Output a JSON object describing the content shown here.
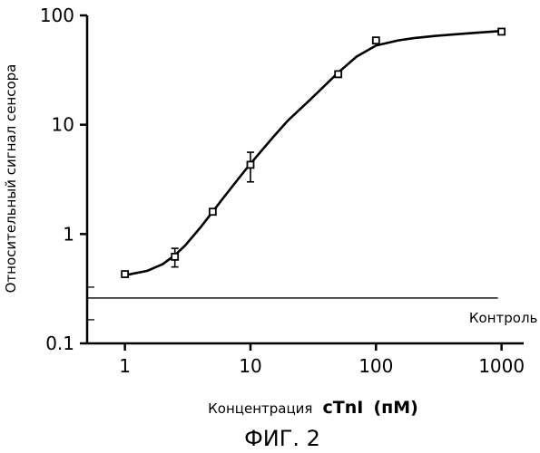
{
  "chart_data": {
    "type": "scatter",
    "title": "",
    "xlabel_prefix": "Концентрация",
    "xlabel_analyte": "cTnI",
    "xlabel_unit": "(пM)",
    "ylabel": "Относительный сигнал сенсора",
    "caption": "ФИГ. 2",
    "x_scale": "log",
    "y_scale": "log",
    "xlim": [
      0.5,
      1500
    ],
    "ylim": [
      0.1,
      100
    ],
    "x_ticks": [
      1,
      10,
      100,
      1000
    ],
    "x_tick_labels": [
      "1",
      "10",
      "100",
      "1000"
    ],
    "y_ticks": [
      0.1,
      1,
      10,
      100
    ],
    "y_tick_labels": [
      "0.1",
      "1",
      "10",
      "100"
    ],
    "grid": false,
    "series": [
      {
        "marker": "square",
        "points": [
          {
            "x": 1,
            "y": 0.43,
            "err_low": 0.41,
            "err_high": 0.45
          },
          {
            "x": 2.5,
            "y": 0.62,
            "err_low": 0.5,
            "err_high": 0.74
          },
          {
            "x": 5,
            "y": 1.6,
            "err_low": 1.5,
            "err_high": 1.7
          },
          {
            "x": 10,
            "y": 4.3,
            "err_low": 3.0,
            "err_high": 5.6
          },
          {
            "x": 50,
            "y": 29,
            "err_low": 27,
            "err_high": 31
          },
          {
            "x": 100,
            "y": 59,
            "err_low": 55,
            "err_high": 63
          },
          {
            "x": 1000,
            "y": 71,
            "err_low": 69,
            "err_high": 73
          }
        ]
      }
    ],
    "fit_curve": {
      "x": [
        1,
        1.5,
        2,
        2.5,
        3,
        4,
        5,
        6,
        8,
        10,
        15,
        20,
        30,
        50,
        70,
        100,
        150,
        200,
        300,
        500,
        700,
        1000
      ],
      "y": [
        0.42,
        0.46,
        0.53,
        0.64,
        0.78,
        1.15,
        1.6,
        2.1,
        3.2,
        4.4,
        7.6,
        11,
        17,
        30,
        42,
        53,
        59,
        62,
        65,
        68,
        70,
        72
      ]
    },
    "reference_line": {
      "label": "Контроль",
      "y": 0.26,
      "x_from": 0.5,
      "x_to": 1000
    }
  }
}
